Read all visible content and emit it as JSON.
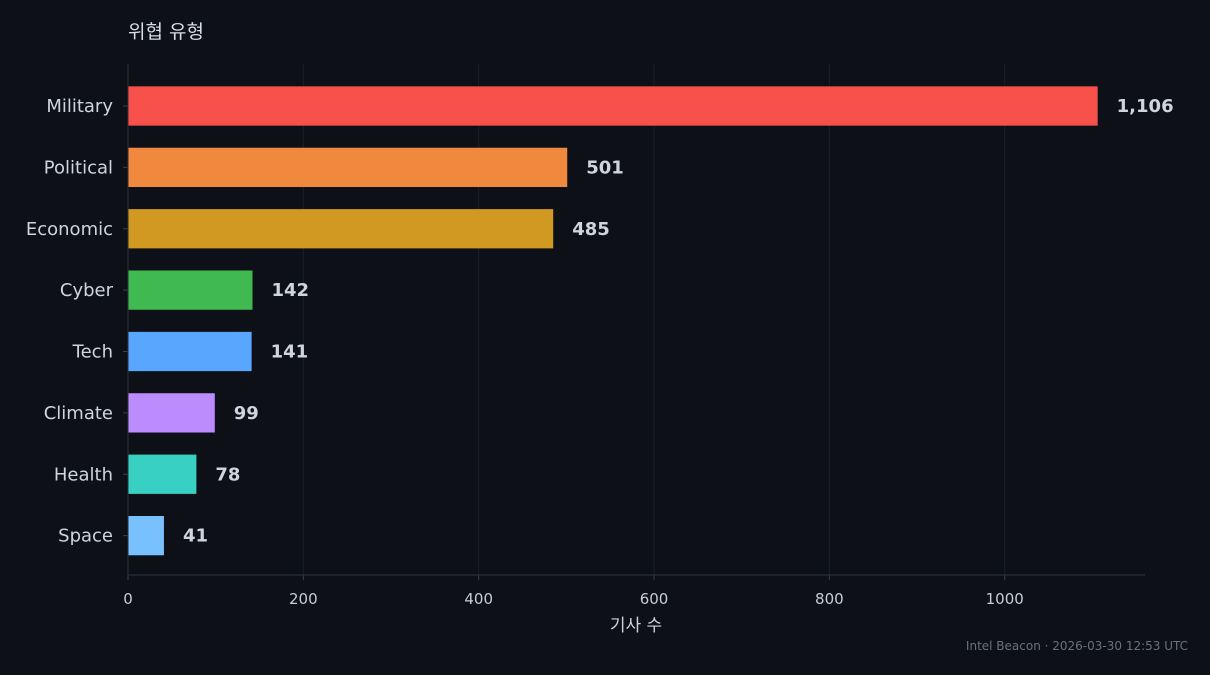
{
  "chart_data": {
    "type": "bar",
    "orientation": "horizontal",
    "title": "위협 유형",
    "xlabel": "기사 수",
    "ylabel": "",
    "categories": [
      "Military",
      "Political",
      "Economic",
      "Cyber",
      "Tech",
      "Climate",
      "Health",
      "Space"
    ],
    "values": [
      1106,
      501,
      485,
      142,
      141,
      99,
      78,
      41
    ],
    "value_labels": [
      "1,106",
      "501",
      "485",
      "142",
      "141",
      "99",
      "78",
      "41"
    ],
    "colors": [
      "#f8514c",
      "#f0883e",
      "#d29922",
      "#3fb950",
      "#58a6ff",
      "#bc8cff",
      "#39d0c4",
      "#79c0ff"
    ],
    "xlim": [
      0,
      1160
    ],
    "xticks": [
      0,
      200,
      400,
      600,
      800,
      1000
    ],
    "grid": "vertical",
    "legend": "none"
  },
  "footer": "Intel Beacon · 2026-03-30 12:53 UTC",
  "theme": {
    "background": "#0d1017",
    "grid": "#1a1f29",
    "axis": "#2a2f3a"
  }
}
